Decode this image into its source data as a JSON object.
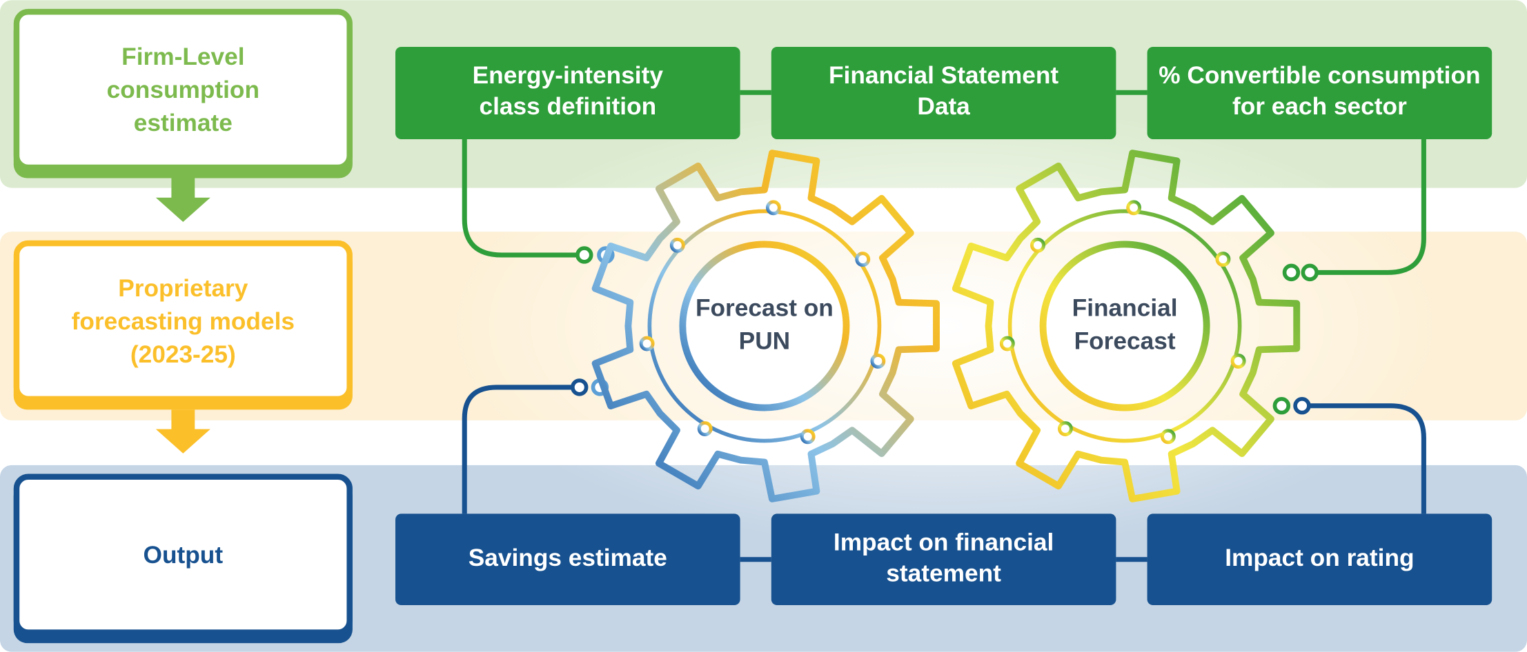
{
  "stages": [
    {
      "label": [
        "Firm-Level",
        "consumption",
        "estimate"
      ]
    },
    {
      "label": [
        "Proprietary",
        "forecasting models",
        "(2023-25)"
      ]
    },
    {
      "label": [
        "Output"
      ]
    }
  ],
  "inputs": [
    {
      "label": [
        "Energy-intensity",
        "class definition"
      ]
    },
    {
      "label": [
        "Financial Statement",
        "Data"
      ]
    },
    {
      "label": [
        "% Convertible consumption",
        "for each sector"
      ]
    }
  ],
  "gears": [
    {
      "label": [
        "Forecast on",
        "PUN"
      ]
    },
    {
      "label": [
        "Financial",
        "Forecast"
      ]
    }
  ],
  "outputs": [
    {
      "label": [
        "Savings estimate"
      ]
    },
    {
      "label": [
        "Impact on financial",
        "statement"
      ]
    },
    {
      "label": [
        "Impact on rating"
      ]
    }
  ]
}
